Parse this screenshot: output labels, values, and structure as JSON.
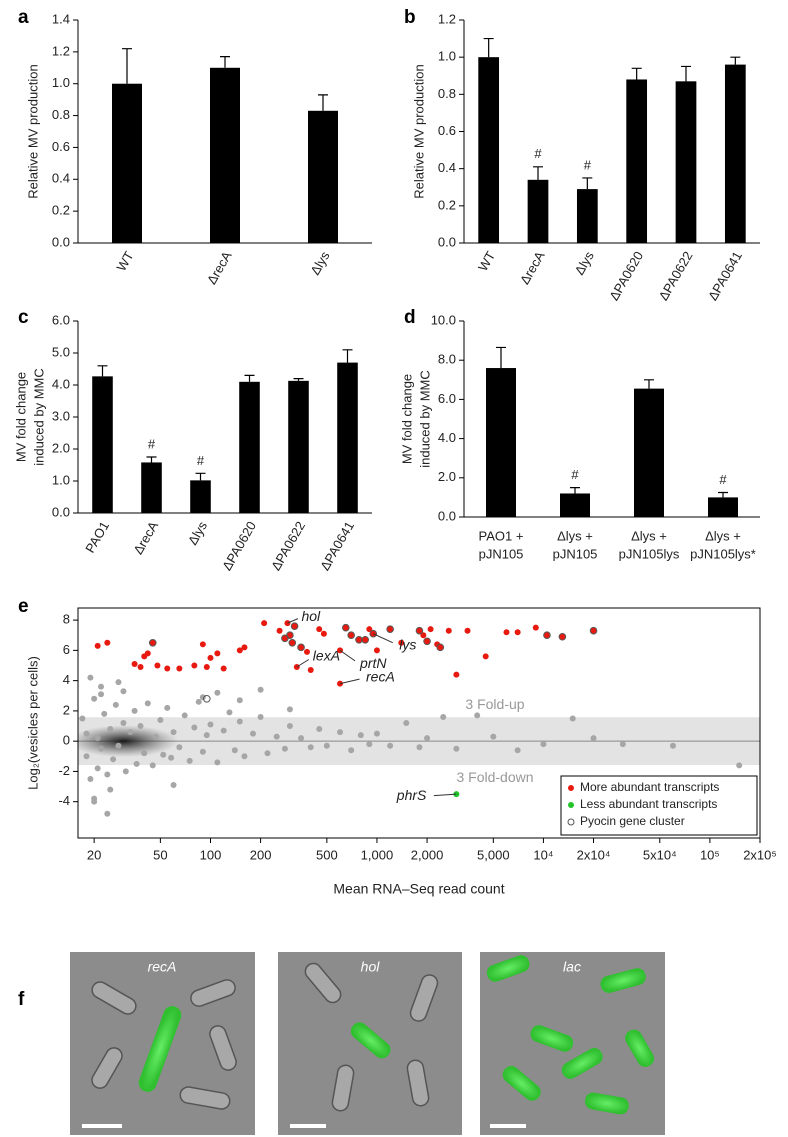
{
  "chart_data": [
    {
      "panel": "a",
      "type": "bar",
      "ylabel": "Relative MV production",
      "categories": [
        "WT",
        "ΔrecA",
        "Δlys"
      ],
      "values": [
        1.0,
        1.1,
        0.83
      ],
      "errors": [
        0.22,
        0.07,
        0.1
      ],
      "color": "#000000",
      "ylim": [
        0,
        1.4
      ],
      "yticks": [
        {
          "value": 0,
          "label": "0.0"
        },
        0.2,
        0.4,
        0.6,
        0.8,
        {
          "value": 1,
          "label": "1.0"
        },
        1.2,
        1.4
      ]
    },
    {
      "panel": "b",
      "type": "bar",
      "ylabel": "Relative MV production",
      "categories": [
        "WT",
        "ΔrecA",
        "Δlys",
        "ΔPA0620",
        "ΔPA0622",
        "ΔPA0641"
      ],
      "values": [
        1.0,
        0.34,
        0.29,
        0.88,
        0.87,
        0.96
      ],
      "errors": [
        0.1,
        0.07,
        0.06,
        0.06,
        0.08,
        0.04
      ],
      "color": "#000000",
      "ylim": [
        0,
        1.2
      ],
      "yticks": [
        {
          "value": 0,
          "label": "0.0"
        },
        0.2,
        0.4,
        0.6,
        0.8,
        {
          "value": 1,
          "label": "1.0"
        },
        1.2
      ],
      "annotations": [
        {
          "text": "#",
          "index": 1
        },
        {
          "text": "#",
          "index": 2
        }
      ]
    },
    {
      "panel": "c",
      "type": "bar",
      "ylabel": [
        "MV fold change",
        "induced by MMC"
      ],
      "categories": [
        "PAO1",
        "ΔrecA",
        "Δlys",
        "ΔPA0620",
        "ΔPA0622",
        "ΔPA0641"
      ],
      "values": [
        4.27,
        1.58,
        1.02,
        4.1,
        4.13,
        4.7
      ],
      "errors": [
        0.33,
        0.17,
        0.22,
        0.2,
        0.07,
        0.4
      ],
      "color": "#000000",
      "ylim": [
        0,
        6
      ],
      "yticks": [
        {
          "value": 0,
          "label": "0.0"
        },
        {
          "value": 1,
          "label": "1.0"
        },
        {
          "value": 2,
          "label": "2.0"
        },
        {
          "value": 3,
          "label": "3.0"
        },
        {
          "value": 4,
          "label": "4.0"
        },
        {
          "value": 5,
          "label": "5.0"
        },
        {
          "value": 6,
          "label": "6.0"
        }
      ],
      "annotations": [
        {
          "text": "#",
          "index": 1
        },
        {
          "text": "#",
          "index": 2
        }
      ]
    },
    {
      "panel": "d",
      "type": "bar",
      "ylabel": [
        "MV fold change",
        "induced by MMC"
      ],
      "categories": [
        [
          "PAO1 +",
          "pJN105"
        ],
        [
          "Δlys +",
          "pJN105"
        ],
        [
          "Δlys +",
          "pJN105lys"
        ],
        [
          "Δlys +",
          "pJN105lys*"
        ]
      ],
      "values": [
        7.6,
        1.2,
        6.55,
        1.0
      ],
      "errors": [
        1.05,
        0.3,
        0.45,
        0.25
      ],
      "color": "#000000",
      "ylim": [
        0,
        10
      ],
      "yticks": [
        {
          "value": 0,
          "label": "0.0"
        },
        {
          "value": 2,
          "label": "2.0"
        },
        {
          "value": 4,
          "label": "4.0"
        },
        {
          "value": 6,
          "label": "6.0"
        },
        {
          "value": 8,
          "label": "8.0"
        },
        {
          "value": 10,
          "label": "10.0"
        }
      ],
      "annotations": [
        {
          "text": "#",
          "index": 1
        },
        {
          "text": "#",
          "index": 3
        }
      ]
    },
    {
      "panel": "e",
      "type": "scatter",
      "xlabel": "Mean RNA–Seq read count",
      "ylabel": "Log₂(vesicles per cells)",
      "xscale": "log",
      "xlim": [
        16,
        200000
      ],
      "ylim": [
        -6.4,
        8.8
      ],
      "xticks": [
        20,
        50,
        100,
        200,
        500,
        {
          "value": 1000,
          "label": "1,000"
        },
        {
          "value": 2000,
          "label": "2,000"
        },
        {
          "value": 5000,
          "label": "5,000"
        },
        {
          "value": 10000,
          "label": "10⁴"
        },
        {
          "value": 20000,
          "label": "2x10⁴"
        },
        {
          "value": 50000,
          "label": "5x10⁴"
        },
        {
          "value": 100000,
          "label": "10⁵"
        },
        {
          "value": 200000,
          "label": "2x10⁵"
        }
      ],
      "yticks": [
        -4,
        -2,
        0,
        2,
        4,
        6,
        8
      ],
      "band": [
        -1.58,
        1.58
      ],
      "band_labels": [
        "3 Fold-up",
        "3 Fold-down"
      ],
      "legend": "lower right",
      "series": [
        {
          "color": "#a6a6a6",
          "x": [
            17,
            18,
            18,
            19,
            20,
            20,
            21,
            21,
            22,
            22,
            23,
            24,
            25,
            26,
            27,
            28,
            30,
            31,
            33,
            35,
            36,
            38,
            40,
            42,
            45,
            47,
            50,
            52,
            55,
            58,
            60,
            65,
            70,
            75,
            80,
            85,
            90,
            95,
            100,
            110,
            120,
            130,
            140,
            150,
            160,
            180,
            200,
            220,
            250,
            280,
            300,
            350,
            400,
            450,
            500,
            600,
            700,
            800,
            900,
            1000,
            1200,
            1500,
            1800,
            2000,
            2500,
            3000,
            4000,
            5000,
            7000,
            10000,
            15000,
            20000,
            30000,
            60000,
            150000,
            19,
            20,
            22,
            25,
            28,
            24,
            30,
            60,
            90,
            110,
            150,
            200,
            300
          ],
          "values": [
            1.5,
            -1.0,
            0.5,
            -2.5,
            2.8,
            -3.8,
            0.2,
            -1.8,
            3.1,
            -0.5,
            1.8,
            -2.2,
            0.8,
            -1.2,
            2.4,
            -0.3,
            1.2,
            -2.0,
            0.6,
            2.0,
            -1.5,
            1.0,
            -0.8,
            2.5,
            -1.6,
            0.3,
            1.4,
            -0.9,
            2.2,
            -1.1,
            0.6,
            -0.4,
            1.7,
            -1.3,
            0.9,
            2.6,
            -0.7,
            0.4,
            1.1,
            -1.4,
            0.7,
            1.9,
            -0.6,
            1.3,
            -1.0,
            0.5,
            1.6,
            -0.8,
            0.3,
            -0.5,
            1.0,
            0.2,
            -0.4,
            0.8,
            -0.3,
            0.6,
            -0.6,
            0.4,
            -0.2,
            0.5,
            -0.3,
            1.2,
            -0.4,
            0.2,
            1.6,
            -0.5,
            1.7,
            0.3,
            -0.6,
            -0.2,
            1.5,
            0.2,
            -0.2,
            -0.3,
            -1.6,
            4.2,
            -4.0,
            3.6,
            -3.2,
            3.9,
            -4.8,
            3.3,
            -2.9,
            2.9,
            3.2,
            2.7,
            3.4,
            2.1
          ]
        },
        {
          "name": "More abundant transcripts",
          "color": "#e8190f",
          "x": [
            21,
            24,
            35,
            38,
            40,
            42,
            45,
            48,
            55,
            65,
            80,
            90,
            95,
            100,
            110,
            120,
            150,
            160,
            210,
            260,
            290,
            280,
            300,
            310,
            320,
            330,
            350,
            380,
            400,
            450,
            480,
            600,
            600,
            650,
            700,
            780,
            850,
            900,
            950,
            1000,
            1200,
            1400,
            1800,
            1900,
            2000,
            2300,
            2400,
            2700,
            3000,
            3500,
            4500,
            6000,
            7000,
            9000,
            10500,
            13000,
            20000,
            2100
          ],
          "values": [
            6.3,
            6.5,
            5.1,
            4.9,
            5.6,
            5.8,
            6.5,
            5.0,
            4.8,
            4.8,
            5.0,
            6.4,
            4.9,
            5.5,
            5.8,
            4.8,
            6.0,
            6.2,
            7.8,
            7.3,
            7.8,
            6.8,
            7.0,
            6.5,
            7.6,
            4.9,
            6.2,
            5.9,
            4.7,
            7.4,
            7.1,
            6.0,
            3.8,
            7.5,
            7.0,
            6.7,
            6.7,
            7.4,
            7.1,
            6.0,
            7.4,
            6.5,
            7.3,
            7.0,
            6.6,
            6.4,
            6.2,
            7.3,
            4.4,
            7.3,
            5.6,
            7.2,
            7.2,
            7.5,
            7.0,
            6.9,
            7.3,
            7.4
          ]
        },
        {
          "name": "Less abundant transcripts",
          "color": "#22c42a",
          "x": [
            3000
          ],
          "values": [
            -3.5
          ]
        },
        {
          "name": "Pyocin gene cluster",
          "color": "#555555",
          "marker": "open",
          "x": [
            45,
            280,
            300,
            310,
            320,
            350,
            650,
            700,
            780,
            850,
            950,
            1200,
            1800,
            2000,
            2400,
            10500,
            13000,
            20000,
            95
          ],
          "values": [
            6.5,
            6.8,
            7.0,
            6.5,
            7.6,
            6.2,
            7.5,
            7.0,
            6.7,
            6.7,
            7.1,
            7.4,
            7.3,
            6.6,
            6.2,
            7.0,
            6.9,
            7.3,
            2.8
          ]
        }
      ],
      "annotations": [
        {
          "text": "hol",
          "x": 290,
          "y": 7.8
        },
        {
          "text": "lys",
          "x": 950,
          "y": 7.1
        },
        {
          "text": "lexA",
          "x": 330,
          "y": 4.9
        },
        {
          "text": "prtN",
          "x": 600,
          "y": 6.0
        },
        {
          "text": "recA",
          "x": 600,
          "y": 3.8
        },
        {
          "text": "phrS",
          "x": 3000,
          "y": -3.5
        }
      ]
    }
  ],
  "images": {
    "panel": "f",
    "labels": [
      "recA",
      "hol",
      "lac"
    ]
  }
}
